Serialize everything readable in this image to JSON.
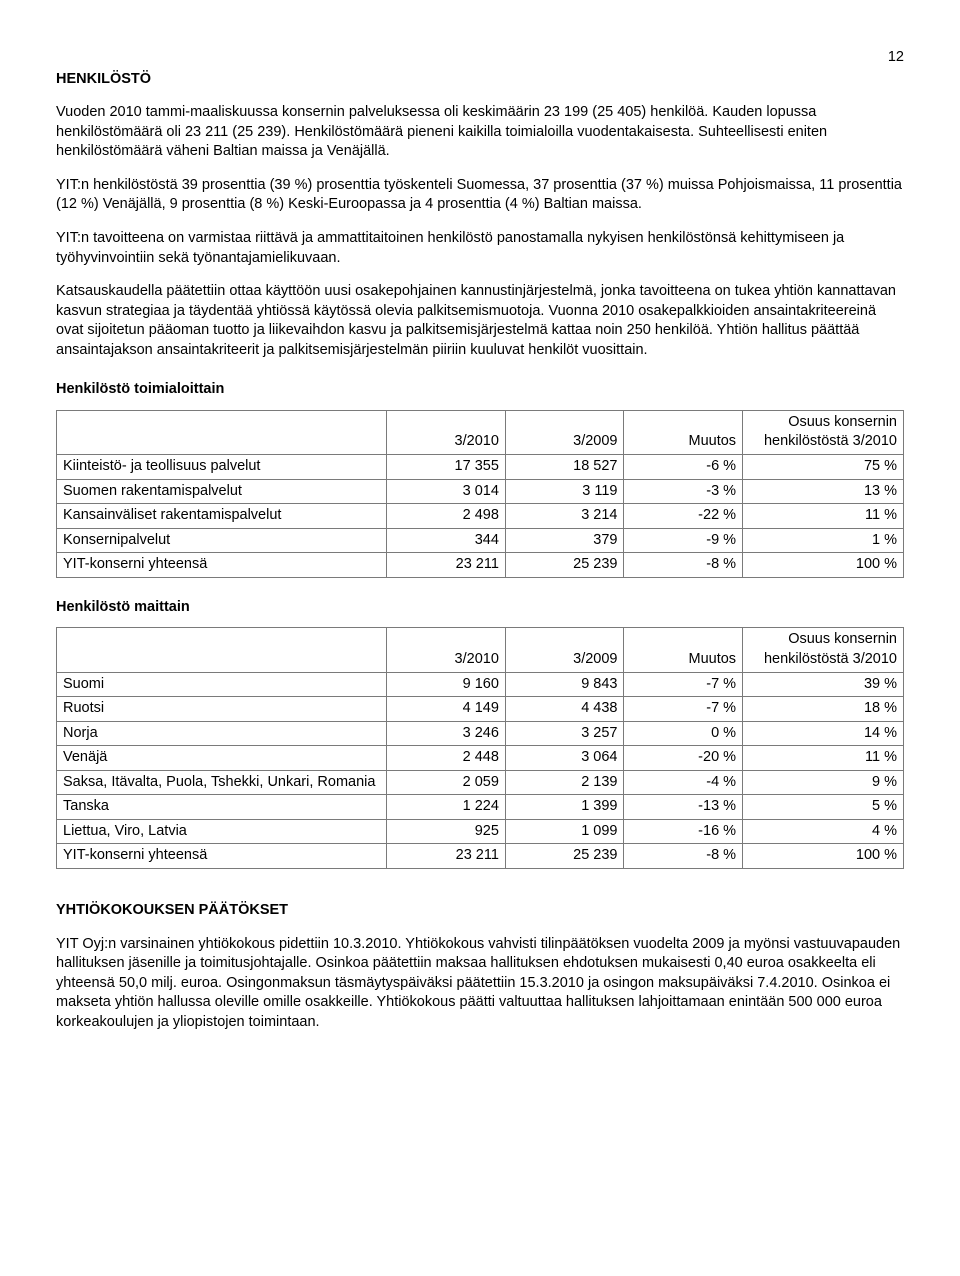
{
  "pageNumber": "12",
  "section1": {
    "title": "HENKILÖSTÖ",
    "p1": "Vuoden 2010 tammi-maaliskuussa konsernin palveluksessa oli keskimäärin 23 199 (25 405) henkilöä. Kauden lopussa henkilöstömäärä oli 23 211 (25 239). Henkilöstömäärä pieneni kaikilla toimialoilla vuodentakaisesta. Suhteellisesti eniten henkilöstömäärä väheni Baltian maissa ja Venäjällä.",
    "p2": "YIT:n henkilöstöstä 39 prosenttia (39 %) prosenttia työskenteli Suomessa, 37 prosenttia (37 %) muissa Pohjoismaissa, 11 prosenttia (12 %) Venäjällä, 9 prosenttia (8 %) Keski-Euroopassa ja 4 prosenttia (4 %) Baltian maissa.",
    "p3": "YIT:n tavoitteena on varmistaa riittävä ja ammattitaitoinen henkilöstö panostamalla nykyisen henkilöstönsä kehittymiseen ja työhyvinvointiin sekä työnantajamielikuvaan.",
    "p4": "Katsauskaudella päätettiin ottaa käyttöön uusi osakepohjainen kannustinjärjestelmä, jonka tavoitteena on tukea yhtiön kannattavan kasvun strategiaa ja täydentää yhtiössä käytössä olevia palkitsemismuotoja. Vuonna 2010 osakepalkkioiden ansaintakriteereinä ovat sijoitetun pääoman tuotto ja liikevaihdon kasvu ja palkitsemisjärjestelmä kattaa noin 250 henkilöä. Yhtiön hallitus päättää ansaintajakson ansaintakriteerit ja palkitsemisjärjestelmän piiriin kuuluvat henkilöt vuosittain."
  },
  "table1": {
    "title": "Henkilöstö toimialoittain",
    "headers": [
      "",
      "3/2010",
      "3/2009",
      "Muutos",
      "Osuus konsernin henkilöstöstä 3/2010"
    ],
    "rows": [
      [
        "Kiinteistö- ja teollisuus palvelut",
        "17 355",
        "18 527",
        "-6 %",
        "75 %"
      ],
      [
        "Suomen rakentamispalvelut",
        "3 014",
        "3 119",
        "-3 %",
        "13 %"
      ],
      [
        "Kansainväliset rakentamispalvelut",
        "2 498",
        "3 214",
        "-22 %",
        "11 %"
      ],
      [
        "Konsernipalvelut",
        "344",
        "379",
        "-9 %",
        "1 %"
      ],
      [
        "YIT-konserni yhteensä",
        "23 211",
        "25 239",
        "-8 %",
        "100 %"
      ]
    ]
  },
  "table2": {
    "title": "Henkilöstö maittain",
    "headers": [
      "",
      "3/2010",
      "3/2009",
      "Muutos",
      "Osuus konsernin henkilöstöstä 3/2010"
    ],
    "rows": [
      [
        "Suomi",
        "9 160",
        "9 843",
        "-7 %",
        "39 %"
      ],
      [
        "Ruotsi",
        "4 149",
        "4 438",
        "-7 %",
        "18 %"
      ],
      [
        "Norja",
        "3 246",
        "3 257",
        "0 %",
        "14 %"
      ],
      [
        "Venäjä",
        "2 448",
        "3 064",
        "-20 %",
        "11 %"
      ],
      [
        "Saksa, Itävalta, Puola, Tshekki, Unkari, Romania",
        "2 059",
        "2 139",
        "-4 %",
        "9 %"
      ],
      [
        "Tanska",
        "1 224",
        "1 399",
        "-13 %",
        "5 %"
      ],
      [
        "Liettua, Viro, Latvia",
        "925",
        "1 099",
        "-16 %",
        "4 %"
      ],
      [
        "YIT-konserni yhteensä",
        "23 211",
        "25 239",
        "-8 %",
        "100 %"
      ]
    ]
  },
  "section2": {
    "title": "YHTIÖKOKOUKSEN PÄÄTÖKSET",
    "p1": "YIT Oyj:n varsinainen yhtiökokous pidettiin 10.3.2010. Yhtiökokous vahvisti tilinpäätöksen vuodelta 2009 ja myönsi vastuuvapauden hallituksen jäsenille ja toimitusjohtajalle. Osinkoa päätettiin maksaa hallituksen ehdotuksen mukaisesti 0,40 euroa osakkeelta eli yhteensä 50,0 milj. euroa. Osingonmaksun täsmäytyspäiväksi päätettiin 15.3.2010 ja osingon maksupäiväksi 7.4.2010. Osinkoa ei makseta yhtiön hallussa oleville omille osakkeille. Yhtiökokous päätti valtuuttaa hallituksen lahjoittamaan enintään 500 000 euroa korkeakoulujen ja yliopistojen toimintaan."
  },
  "colWidths": {
    "label": "39%",
    "c1": "14%",
    "c2": "14%",
    "c3": "14%",
    "c4": "19%"
  }
}
